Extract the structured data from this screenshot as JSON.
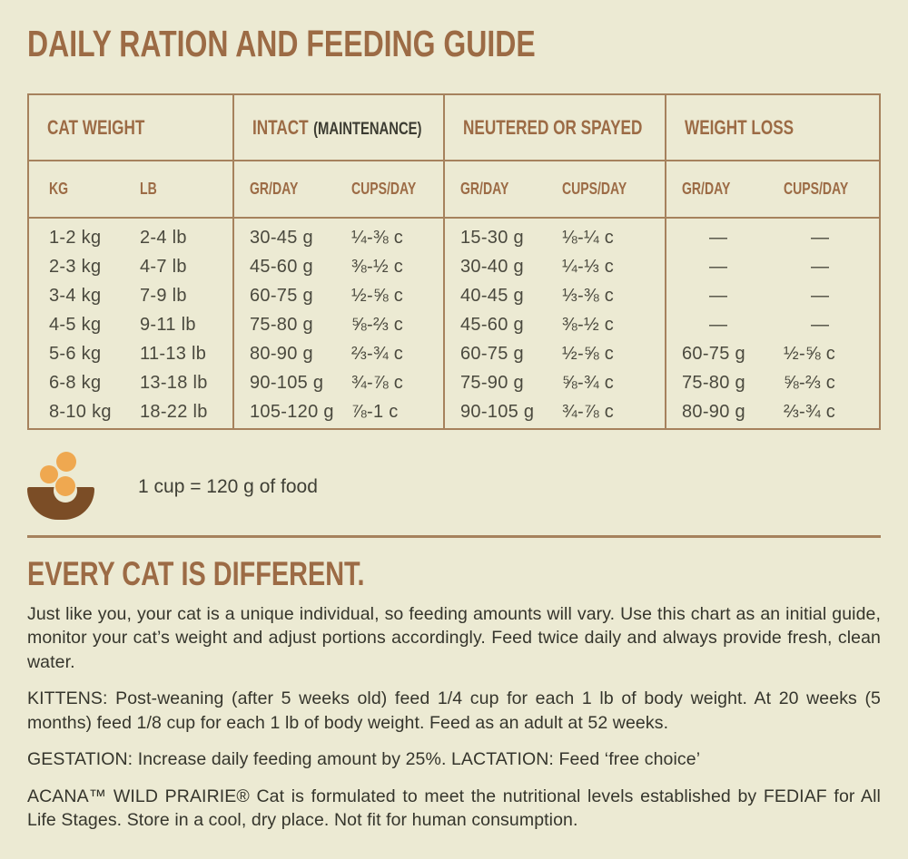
{
  "title": "DAILY RATION AND FEEDING GUIDE",
  "table": {
    "groups": [
      {
        "label": "CAT WEIGHT",
        "suffix": "",
        "sub": [
          "KG",
          "LB"
        ]
      },
      {
        "label": "INTACT",
        "suffix": "(MAINTENANCE)",
        "sub": [
          "GR/DAY",
          "CUPS/DAY"
        ]
      },
      {
        "label": "NEUTERED OR SPAYED",
        "suffix": "",
        "sub": [
          "GR/DAY",
          "CUPS/DAY"
        ]
      },
      {
        "label": "WEIGHT LOSS",
        "suffix": "",
        "sub": [
          "GR/DAY",
          "CUPS/DAY"
        ]
      }
    ],
    "rows": [
      [
        "1-2 kg",
        "2-4 lb",
        "30-45 g",
        "¼-⅜ c",
        "15-30 g",
        "⅛-¼ c",
        "—",
        "—"
      ],
      [
        "2-3 kg",
        "4-7 lb",
        "45-60 g",
        "⅜-½ c",
        "30-40 g",
        "¼-⅓ c",
        "—",
        "—"
      ],
      [
        "3-4 kg",
        "7-9 lb",
        "60-75 g",
        "½-⅝ c",
        "40-45 g",
        "⅓-⅜ c",
        "—",
        "—"
      ],
      [
        "4-5 kg",
        "9-11 lb",
        "75-80 g",
        "⅝-⅔ c",
        "45-60 g",
        "⅜-½ c",
        "—",
        "—"
      ],
      [
        "5-6 kg",
        "11-13 lb",
        "80-90 g",
        "⅔-¾ c",
        "60-75 g",
        "½-⅝ c",
        "60-75 g",
        "½-⅝ c"
      ],
      [
        "6-8 kg",
        "13-18 lb",
        "90-105 g",
        "¾-⅞ c",
        "75-90 g",
        "⅝-¾ c",
        "75-80 g",
        "⅝-⅔ c"
      ],
      [
        "8-10 kg",
        "18-22 lb",
        "105-120 g",
        "⅞-1 c",
        "90-105 g",
        "¾-⅞ c",
        "80-90 g",
        "⅔-¾ c"
      ]
    ]
  },
  "cup_note": "1 cup = 120 g of food",
  "icons": {
    "bowl": "food-bowl-with-kibble"
  },
  "section": {
    "heading": "EVERY CAT IS DIFFERENT.",
    "paragraphs": [
      "Just like you, your cat is a unique individual, so feeding amounts will vary. Use this chart as an initial guide, monitor your cat’s weight and adjust portions accordingly. Feed twice daily and always provide fresh, clean water.",
      "KITTENS: Post-weaning (after 5 weeks old) feed 1/4 cup for each 1 lb of body weight. At 20 weeks (5 months) feed 1/8 cup for each 1 lb of body weight. Feed as an adult at 52 weeks.",
      "GESTATION: Increase daily feeding amount by 25%. LACTATION: Feed ‘free choice’",
      "ACANA™ WILD PRAIRIE® Cat is formulated to meet the nutritional levels established by FEDIAF for All Life Stages. Store in a cool, dry place. Not fit for human consumption."
    ]
  },
  "colors": {
    "background": "#ecead3",
    "accent_brown": "#9c6b45",
    "border_brown": "#a6825d",
    "text_dark": "#3c3c32",
    "bowl_brown": "#7b4d26",
    "kibble_orange": "#efa850"
  }
}
